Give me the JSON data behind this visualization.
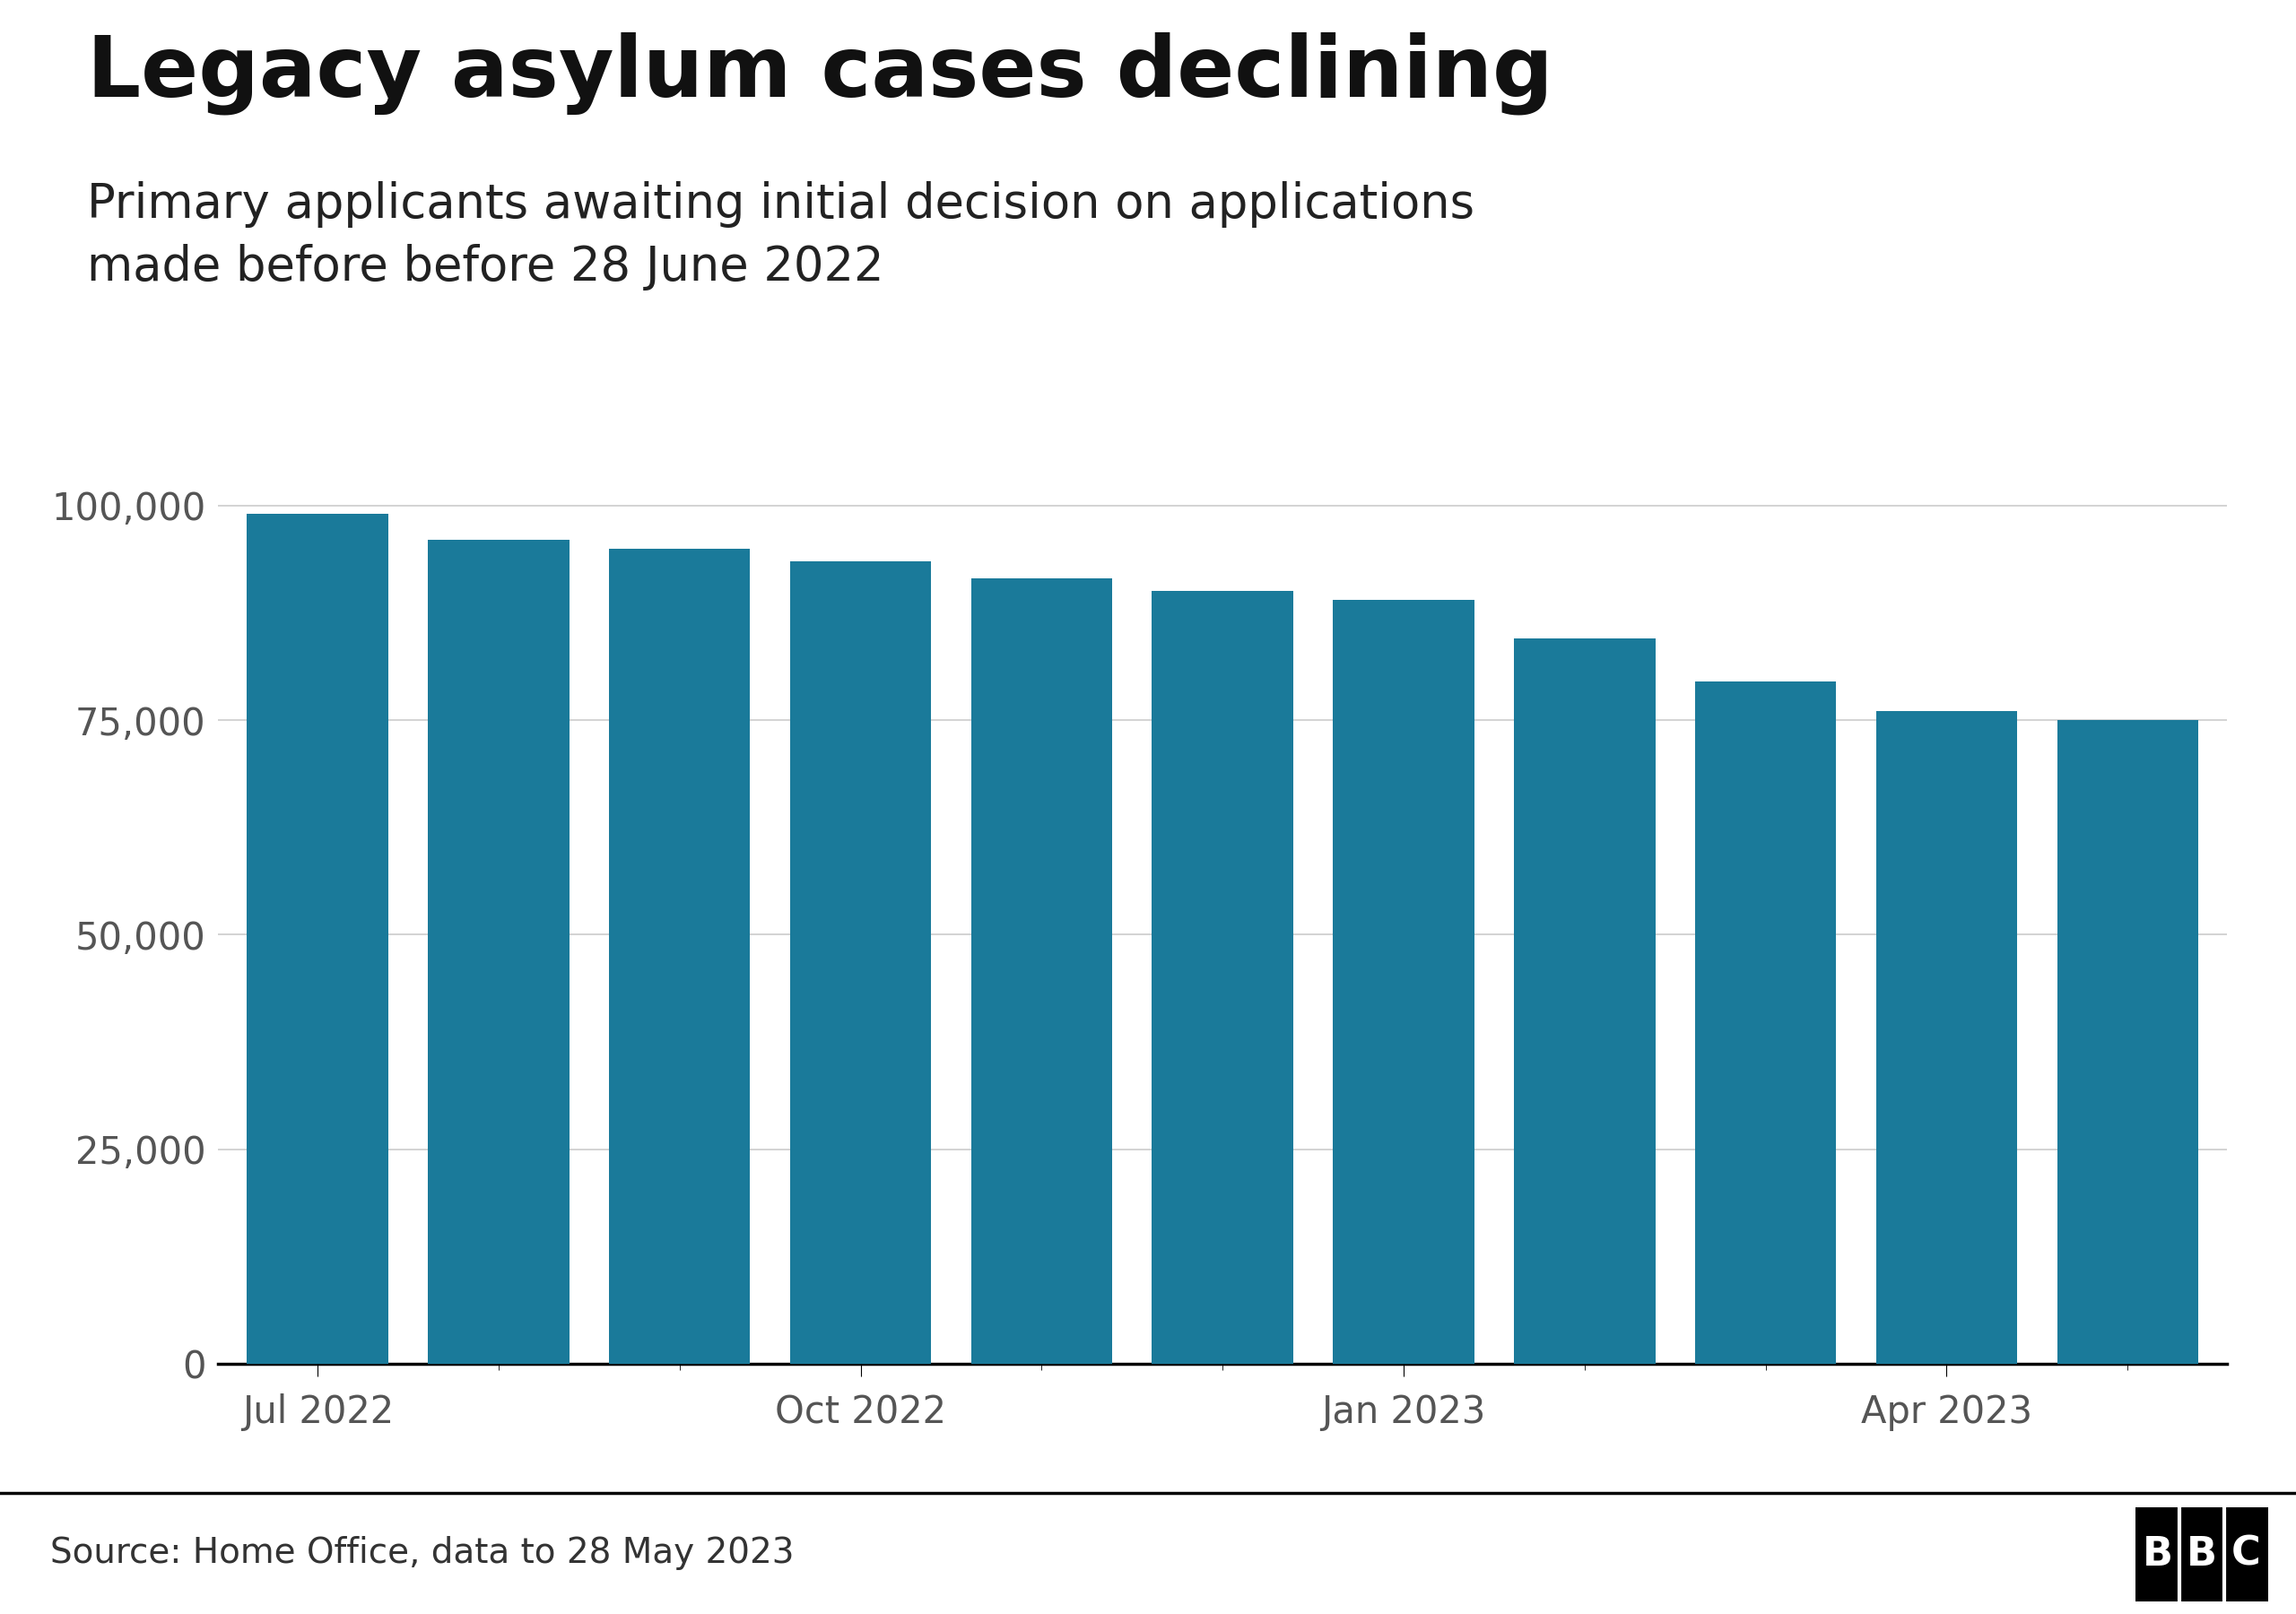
{
  "title": "Legacy asylum cases declining",
  "subtitle": "Primary applicants awaiting initial decision on applications\nmade before before 28 June 2022",
  "source": "Source: Home Office, data to 28 May 2023",
  "x_tick_labels": [
    "Jul 2022",
    "Oct 2022",
    "Jan 2023",
    "Apr 2023"
  ],
  "x_tick_positions": [
    0,
    3,
    6,
    9
  ],
  "values": [
    99000,
    96000,
    95000,
    93500,
    91500,
    90000,
    89000,
    84500,
    79500,
    76000,
    75000
  ],
  "bar_color": "#1a7a9a",
  "background_color": "#ffffff",
  "ylim": [
    0,
    110000
  ],
  "yticks": [
    0,
    25000,
    50000,
    75000,
    100000
  ],
  "ytick_labels": [
    "0",
    "25,000",
    "50,000",
    "75,000",
    "100,000"
  ],
  "title_fontsize": 68,
  "subtitle_fontsize": 38,
  "source_fontsize": 28,
  "tick_fontsize": 30,
  "grid_color": "#cccccc",
  "footer_line_color": "#000000",
  "footer_bg_color": "#ffffff"
}
